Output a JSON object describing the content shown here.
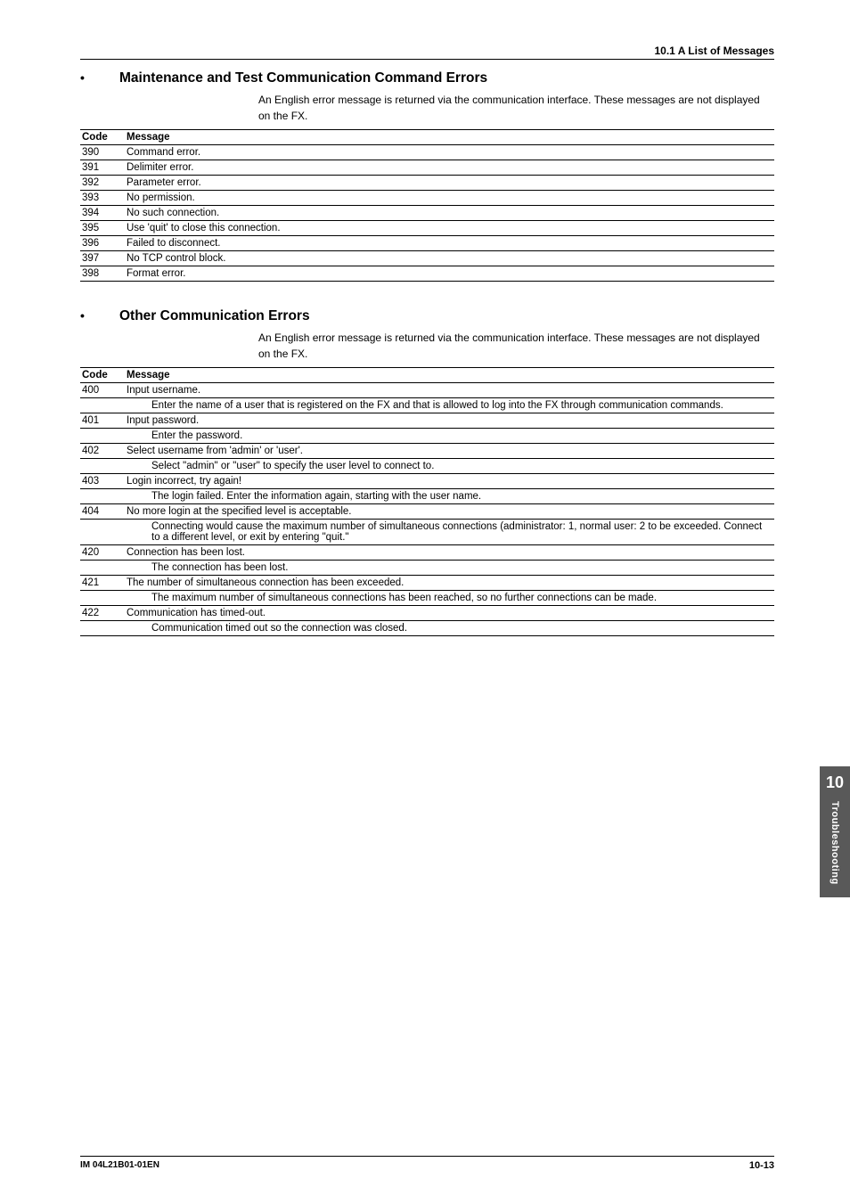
{
  "header": {
    "section_ref": "10.1  A List of Messages"
  },
  "section1": {
    "title": "Maintenance and Test Communication Command Errors",
    "intro": "An English error message is returned via the communication interface. These messages are not displayed on the FX.",
    "head_code": "Code",
    "head_msg": "Message",
    "rows": [
      {
        "code": "390",
        "msg": "Command error."
      },
      {
        "code": "391",
        "msg": "Delimiter error."
      },
      {
        "code": "392",
        "msg": "Parameter error."
      },
      {
        "code": "393",
        "msg": "No permission."
      },
      {
        "code": "394",
        "msg": "No such connection."
      },
      {
        "code": "395",
        "msg": "Use 'quit' to close this connection."
      },
      {
        "code": "396",
        "msg": "Failed to disconnect."
      },
      {
        "code": "397",
        "msg": "No TCP control block."
      },
      {
        "code": "398",
        "msg": "Format error."
      }
    ]
  },
  "section2": {
    "title": "Other Communication Errors",
    "intro": "An English error message is returned via the communication interface. These messages are not displayed on the FX.",
    "head_code": "Code",
    "head_msg": "Message",
    "rows": [
      {
        "code": "400",
        "msg": "Input username.",
        "desc": "Enter the name of a user that is registered on the FX and that is allowed to log into the FX through communication commands."
      },
      {
        "code": "401",
        "msg": "Input password.",
        "desc": "Enter the password."
      },
      {
        "code": "402",
        "msg": "Select username from 'admin' or 'user'.",
        "desc": "Select \"admin\" or \"user\" to specify the user level to connect to."
      },
      {
        "code": "403",
        "msg": "Login incorrect, try again!",
        "desc": "The login failed. Enter the information again, starting with the user name."
      },
      {
        "code": "404",
        "msg": "No more login at the specified level is acceptable.",
        "desc": "Connecting would cause the maximum number of simultaneous connections (administrator: 1, normal user: 2 to be exceeded. Connect to a different level, or exit by entering \"quit.\""
      },
      {
        "code": "420",
        "msg": "Connection has been lost.",
        "desc": "The connection has been lost."
      },
      {
        "code": "421",
        "msg": "The number of simultaneous connection has been exceeded.",
        "desc": "The maximum number of simultaneous connections has been reached, so no further connections can be made."
      },
      {
        "code": "422",
        "msg": "Communication has timed-out.",
        "desc": "Communication timed out so the connection was closed."
      }
    ]
  },
  "sidebar": {
    "chapter": "10",
    "label": "Troubleshooting"
  },
  "footer": {
    "left": "IM 04L21B01-01EN",
    "right": "10-13"
  }
}
